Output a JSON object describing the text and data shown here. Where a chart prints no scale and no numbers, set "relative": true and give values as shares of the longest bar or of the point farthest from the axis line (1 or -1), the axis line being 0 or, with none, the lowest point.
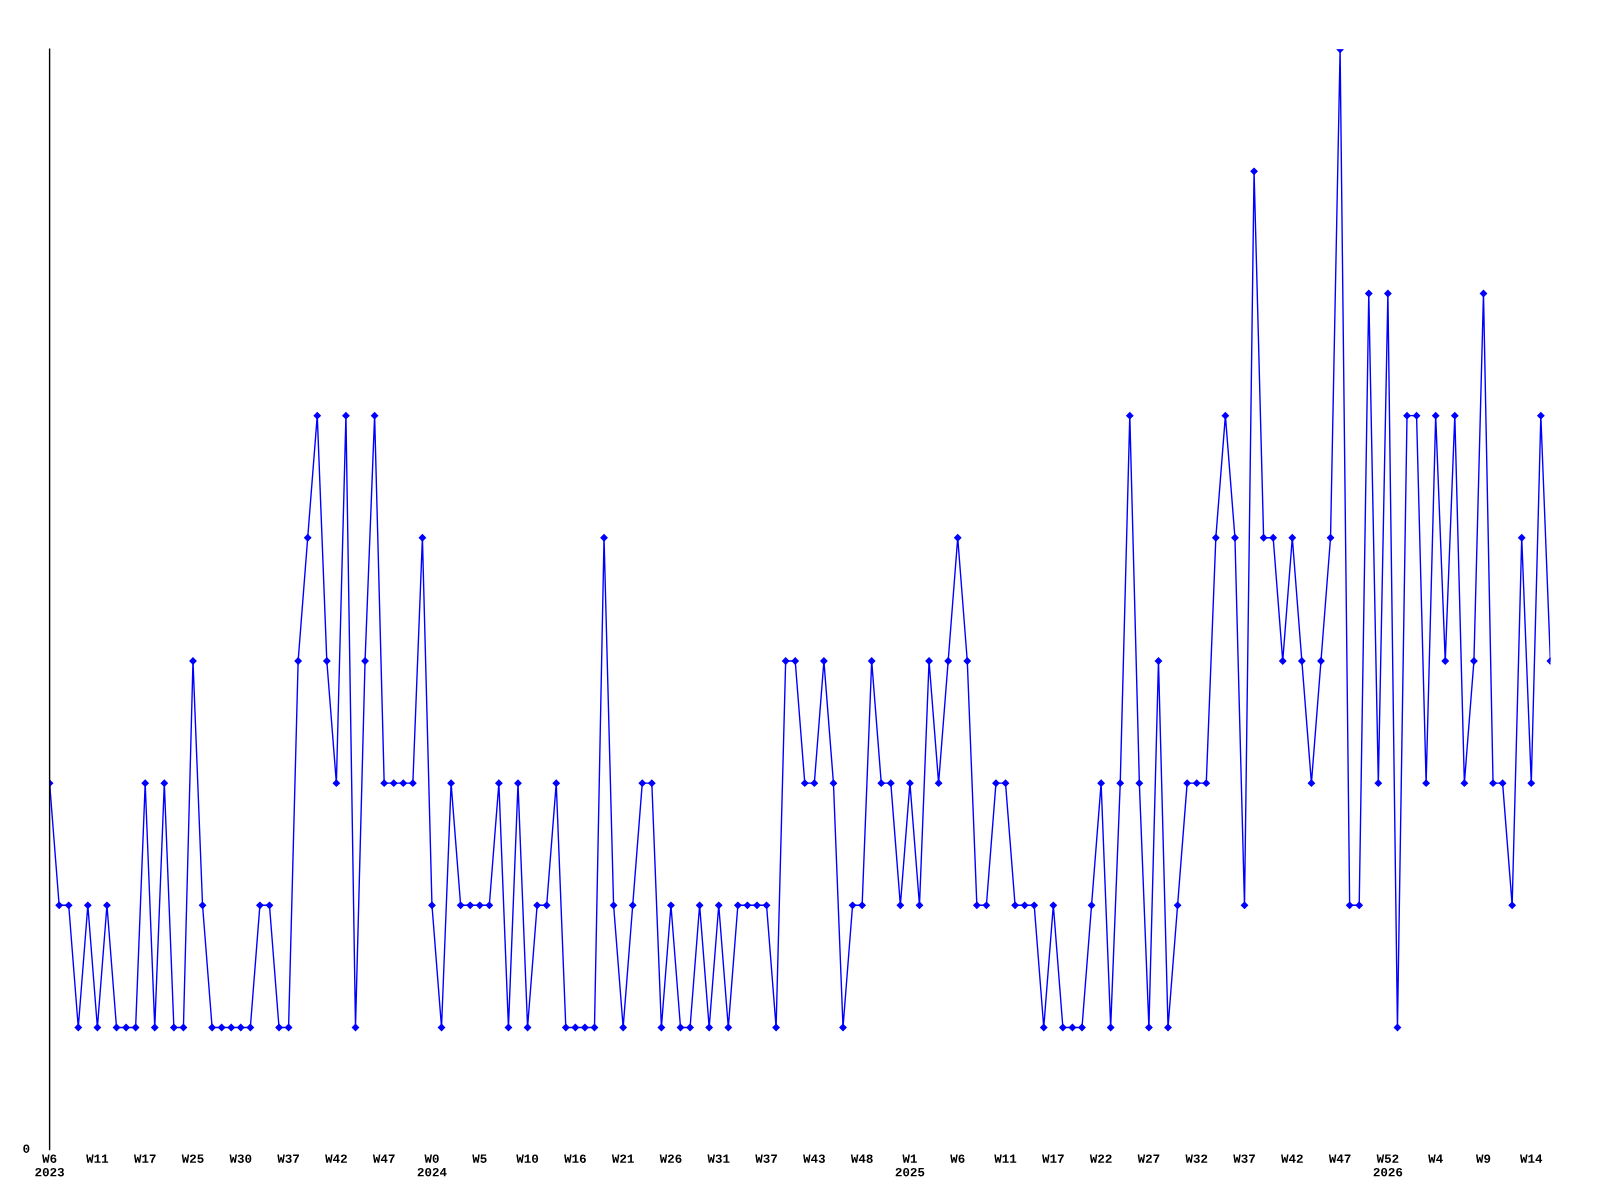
{
  "chart_data": {
    "type": "line",
    "relative": true,
    "marker": "diamond",
    "line_style": "solid",
    "grid": false,
    "categories": [
      "W6\n2023",
      null,
      null,
      null,
      null,
      "W11",
      null,
      null,
      null,
      null,
      "W17",
      null,
      null,
      null,
      null,
      "W25",
      null,
      null,
      null,
      null,
      "W30",
      null,
      null,
      null,
      null,
      "W37",
      null,
      null,
      null,
      null,
      "W42",
      null,
      null,
      null,
      null,
      "W47",
      null,
      null,
      null,
      null,
      "W0\n2024",
      null,
      null,
      null,
      null,
      "W5",
      null,
      null,
      null,
      null,
      "W10",
      null,
      null,
      null,
      null,
      "W16",
      null,
      null,
      null,
      null,
      "W21",
      null,
      null,
      null,
      null,
      "W26",
      null,
      null,
      null,
      null,
      "W31",
      null,
      null,
      null,
      null,
      "W37",
      null,
      null,
      null,
      null,
      "W43",
      null,
      null,
      null,
      null,
      "W48",
      null,
      null,
      null,
      null,
      "W1\n2025",
      null,
      null,
      null,
      null,
      "W6",
      null,
      null,
      null,
      null,
      "W11",
      null,
      null,
      null,
      null,
      "W17",
      null,
      null,
      null,
      null,
      "W22",
      null,
      null,
      null,
      null,
      "W27",
      null,
      null,
      null,
      null,
      "W32",
      null,
      null,
      null,
      null,
      "W37",
      null,
      null,
      null,
      null,
      "W42",
      null,
      null,
      null,
      null,
      "W47",
      null,
      null,
      null,
      null,
      "W52\n2026",
      null,
      null,
      null,
      null,
      "W4",
      null,
      null,
      null,
      null,
      "W9",
      null,
      null,
      null,
      null,
      "W14",
      null,
      null
    ],
    "series": [
      {
        "color": "#0000ff",
        "values": [
          0.333,
          0.222,
          0.222,
          0.111,
          0.222,
          0.111,
          0.222,
          0.111,
          0.111,
          0.111,
          0.333,
          0.111,
          0.333,
          0.111,
          0.111,
          0.444,
          0.222,
          0.111,
          0.111,
          0.111,
          0.111,
          0.111,
          0.222,
          0.222,
          0.111,
          0.111,
          0.444,
          0.556,
          0.667,
          0.444,
          0.333,
          0.667,
          0.111,
          0.444,
          0.667,
          0.333,
          0.333,
          0.333,
          0.333,
          0.556,
          0.222,
          0.111,
          0.333,
          0.222,
          0.222,
          0.222,
          0.222,
          0.333,
          0.111,
          0.333,
          0.111,
          0.222,
          0.222,
          0.333,
          0.111,
          0.111,
          0.111,
          0.111,
          0.556,
          0.222,
          0.111,
          0.222,
          0.333,
          0.333,
          0.111,
          0.222,
          0.111,
          0.111,
          0.222,
          0.111,
          0.222,
          0.111,
          0.222,
          0.222,
          0.222,
          0.222,
          0.111,
          0.444,
          0.444,
          0.333,
          0.333,
          0.444,
          0.333,
          0.111,
          0.222,
          0.222,
          0.444,
          0.333,
          0.333,
          0.222,
          0.333,
          0.222,
          0.444,
          0.333,
          0.444,
          0.556,
          0.444,
          0.222,
          0.222,
          0.333,
          0.333,
          0.222,
          0.222,
          0.222,
          0.111,
          0.222,
          0.111,
          0.111,
          0.111,
          0.222,
          0.333,
          0.111,
          0.333,
          0.667,
          0.333,
          0.111,
          0.444,
          0.111,
          0.222,
          0.333,
          0.333,
          0.333,
          0.556,
          0.667,
          0.556,
          0.222,
          0.889,
          0.556,
          0.556,
          0.444,
          0.556,
          0.444,
          0.333,
          0.444,
          0.556,
          1,
          0.222,
          0.222,
          0.778,
          0.333,
          0.778,
          0.111,
          0.667,
          0.667,
          0.333,
          0.667,
          0.444,
          0.667,
          0.333,
          0.444,
          0.778,
          0.333,
          0.333,
          0.222,
          0.556,
          0.333,
          0.667,
          0.444
        ]
      }
    ],
    "annotations": [
      "0"
    ]
  }
}
